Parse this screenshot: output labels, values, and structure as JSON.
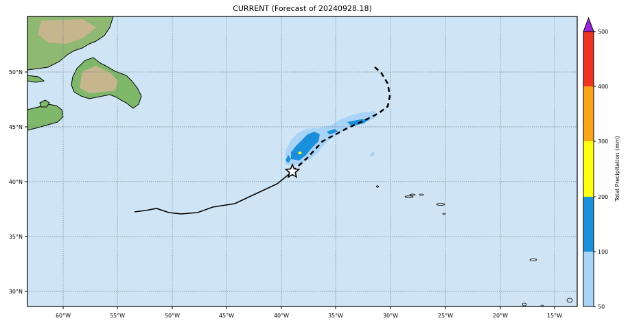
{
  "title": "CURRENT (Forecast of 20240928.18)",
  "map": {
    "lon_ticks": [
      "60°W",
      "55°W",
      "50°W",
      "45°W",
      "40°W",
      "35°W",
      "30°W",
      "25°W",
      "20°W",
      "15°W"
    ],
    "lat_ticks": [
      "50°N",
      "45°N",
      "40°N",
      "35°N",
      "30°N"
    ],
    "ocean_color": "#cfe5f5",
    "grid_style": "dotted"
  },
  "colorbar": {
    "label": "Total Precipitation (mm)",
    "levels": [
      "50",
      "100",
      "200",
      "300",
      "400",
      "500"
    ],
    "colors": [
      "#a9d4f8",
      "#1a8fdc",
      "#ffff14",
      "#f8a51c",
      "#ec3522",
      "#9a25d4"
    ]
  },
  "track": {
    "past_style": "solid",
    "forecast_style": "dashed",
    "marker": "star-icon"
  }
}
